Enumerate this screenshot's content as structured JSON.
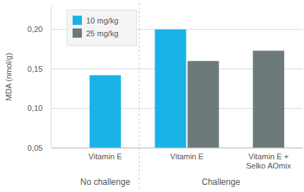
{
  "chart_data": {
    "type": "bar",
    "y_label": "MDA (nmol/g)",
    "categories": [
      "Vitamin E",
      "Vitamin E",
      "Vitamin E + Selko AOmix"
    ],
    "groups": [
      {
        "name": "No challenge",
        "size": 1
      },
      {
        "name": "Challenge",
        "size": 2
      }
    ],
    "series": [
      {
        "name": "10 mg/kg",
        "color": "#1ab3e8",
        "values": [
          0.142,
          0.2,
          null
        ]
      },
      {
        "name": "25 mg/kg",
        "color": "#6c7a7a",
        "values": [
          null,
          0.16,
          0.173
        ]
      }
    ],
    "ylim": [
      0.05,
      0.23
    ],
    "yticks": [
      {
        "value": 0.05,
        "label": "0,05"
      },
      {
        "value": 0.1,
        "label": "0,10"
      },
      {
        "value": 0.15,
        "label": "0,15"
      },
      {
        "value": 0.2,
        "label": "0,20"
      }
    ],
    "grid": true,
    "legend": "top-left"
  }
}
